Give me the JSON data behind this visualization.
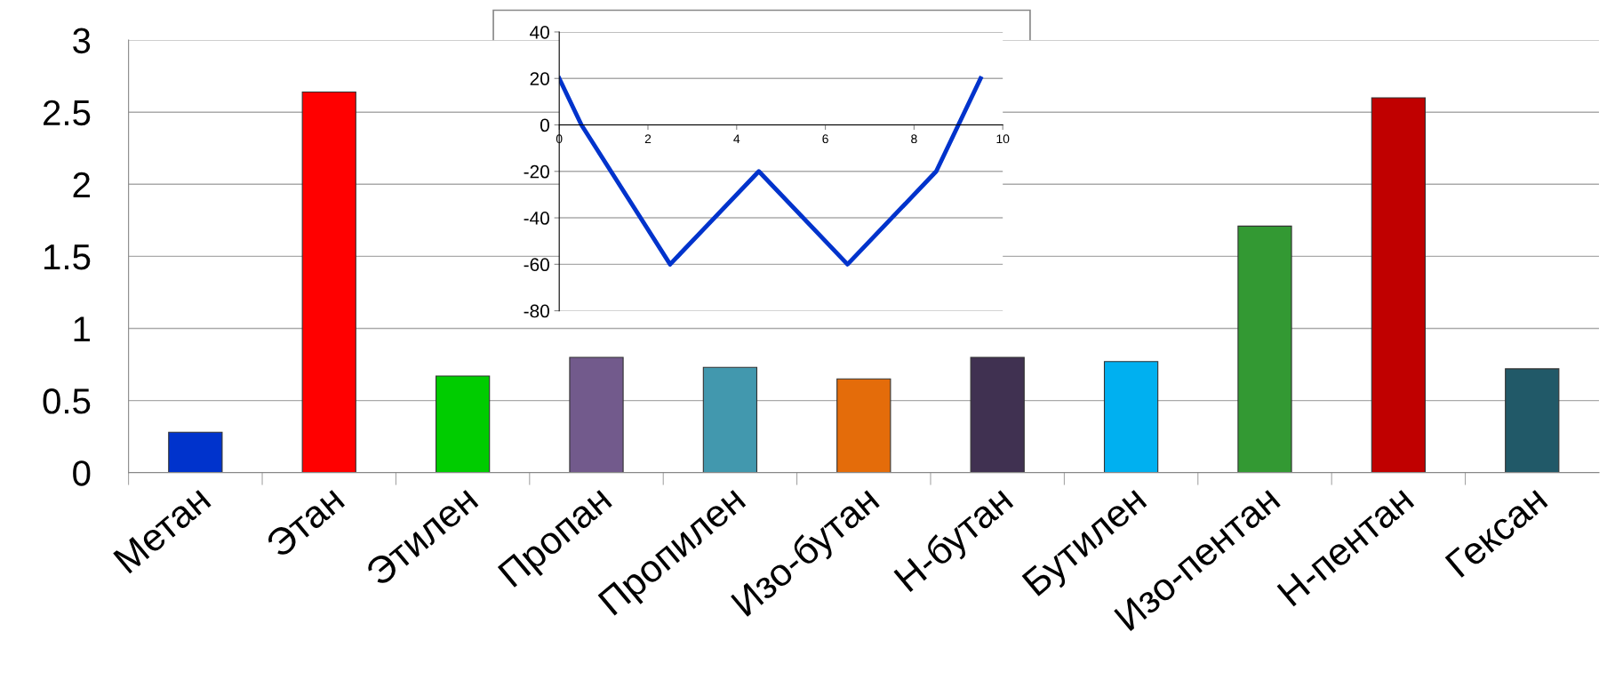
{
  "chart_data": [
    {
      "type": "bar",
      "categories": [
        "Метан",
        "Этан",
        "Этилен",
        "Пропан",
        "Пропилен",
        "Изо-бутан",
        "Н-бутан",
        "Бутилен",
        "Изо-пентан",
        "Н-пентан",
        "Гексан"
      ],
      "values": [
        0.28,
        2.64,
        0.67,
        0.8,
        0.73,
        0.65,
        0.8,
        0.77,
        1.71,
        2.6,
        0.72
      ],
      "colors": [
        "#0033cc",
        "#ff0000",
        "#00cc00",
        "#725a8c",
        "#4298ae",
        "#e46c0a",
        "#403151",
        "#00b0f0",
        "#339933",
        "#c00000",
        "#215968"
      ],
      "ylim": [
        0,
        3
      ],
      "yticks": [
        0,
        0.5,
        1,
        1.5,
        2,
        2.5,
        3
      ],
      "grid": "y"
    },
    {
      "type": "line",
      "x": [
        0,
        0.5,
        2.5,
        4.5,
        6.5,
        8.5,
        9.5
      ],
      "series": [
        {
          "color": "#0033cc",
          "values": [
            20,
            0,
            -60,
            -20,
            -60,
            -20,
            20
          ]
        }
      ],
      "xlim": [
        0,
        10
      ],
      "xticks": [
        0,
        2,
        4,
        6,
        8,
        10
      ],
      "ylim": [
        -80,
        40
      ],
      "yticks": [
        -80,
        -60,
        -40,
        -20,
        0,
        20,
        40
      ],
      "grid": "y"
    }
  ]
}
